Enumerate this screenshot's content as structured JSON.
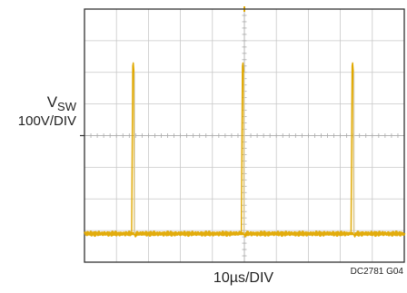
{
  "chart_data": {
    "type": "line",
    "ylabel_main": "V",
    "ylabel_sub": "SW",
    "ylabel_scale": "100V/DIV",
    "xlabel": "10µs/DIV",
    "figure_id": "DC2781 G04",
    "grid": true,
    "x_divisions": 10,
    "y_divisions": 8,
    "xlim_us": [
      0,
      100
    ],
    "trace_color": "#e0a800",
    "baseline_div": 0.9,
    "spike_times_us": [
      15.2,
      49.5,
      83.8
    ],
    "spike_peak_div": 6.3,
    "undershoot_div": 0.8
  }
}
